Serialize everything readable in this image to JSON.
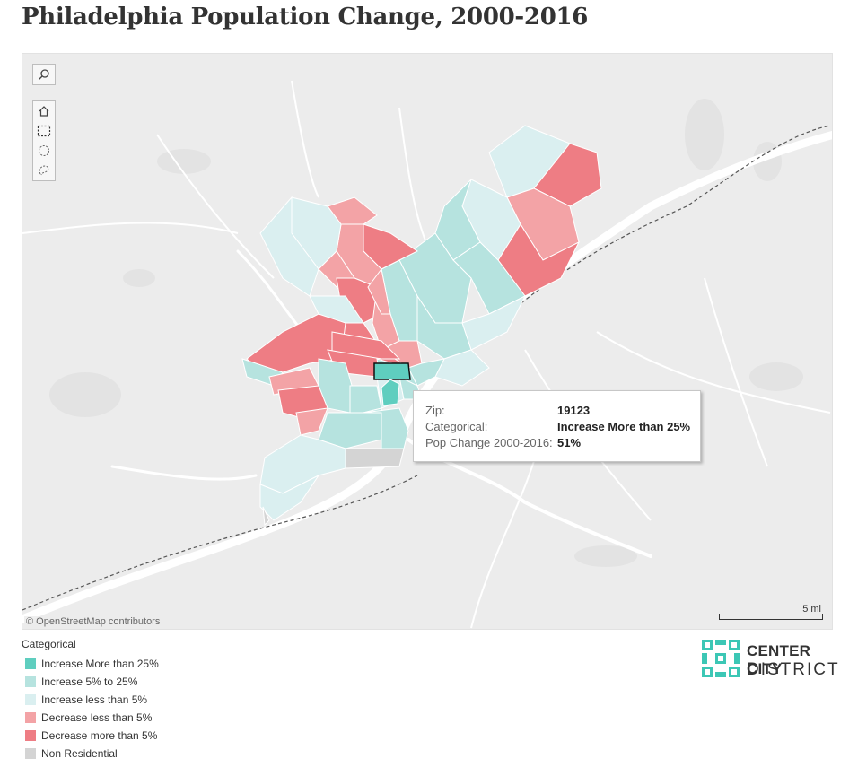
{
  "title": "Philadelphia Population Change, 2000-2016",
  "map": {
    "attribution": "© OpenStreetMap contributors",
    "scale_label": "5 mi",
    "toolbar": {
      "search_icon": "magnifier-icon",
      "home_icon": "home-icon",
      "rect_select_icon": "rectangle-select-icon",
      "radial_select_icon": "radial-select-icon",
      "lasso_select_icon": "lasso-select-icon"
    }
  },
  "tooltip": {
    "rows": [
      {
        "key": "Zip:",
        "value": "19123"
      },
      {
        "key": "Categorical:",
        "value": "Increase More than 25%"
      },
      {
        "key": "Pop Change 2000-2016:",
        "value": "51%"
      }
    ]
  },
  "legend": {
    "title": "Categorical",
    "items": [
      {
        "label": "Increase More than 25%",
        "color": "#5fcebf"
      },
      {
        "label": "Increase 5% to 25%",
        "color": "#b6e3df"
      },
      {
        "label": "Increase less than 5%",
        "color": "#daeff0"
      },
      {
        "label": "Decrease less than 5%",
        "color": "#f3a3a6"
      },
      {
        "label": "Decrease more than 5%",
        "color": "#ee7d84"
      },
      {
        "label": "Non Residential",
        "color": "#d4d4d4"
      }
    ]
  },
  "logo": {
    "line1": "CENTER CITY",
    "line2": "DISTRICT",
    "color": "#3cc7b5"
  }
}
